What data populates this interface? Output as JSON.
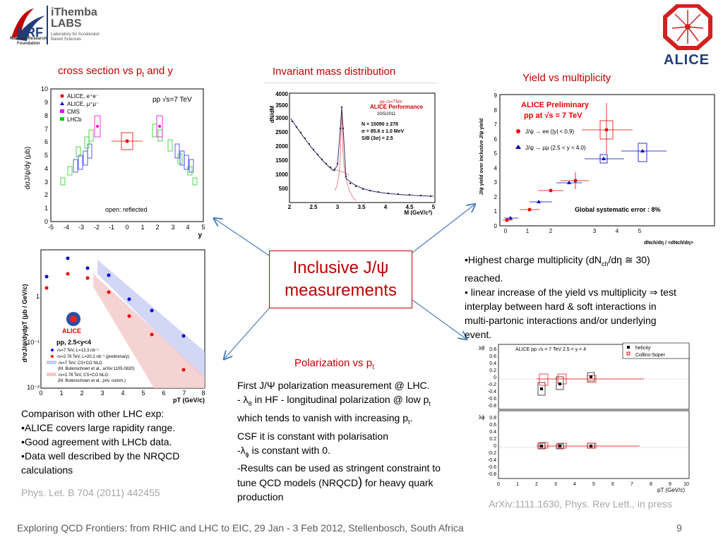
{
  "logos": {
    "nrf": {
      "big": "NRF",
      "line1": "National Research",
      "line2": "Foundation"
    },
    "ithemba": {
      "name1": "iThemba",
      "name2": "LABS",
      "line1": "Laboratory for Accelerator",
      "line2": "Based Sciences"
    },
    "alice": {
      "name": "ALICE"
    }
  },
  "center": {
    "line1": "Inclusive J/ψ",
    "line2": "measurements"
  },
  "sections": {
    "cross_section": {
      "title_main": "cross section vs p",
      "title_sub": "t",
      "title_tail": " and y"
    },
    "invariant_mass": {
      "title": "Invariant mass distribution"
    },
    "yield": {
      "title": "Yield vs multiplicity"
    },
    "polarization": {
      "title_main": "Polarization vs p",
      "title_sub": "t"
    }
  },
  "texts": {
    "comparison": {
      "l1": "Comparison with other LHC exp:",
      "l2": "•ALICE covers large rapidity range.",
      "l3": "•Good agreement  with LHCb data.",
      "l4": "•Data well described by the NRQCD",
      "l5": "calculations"
    },
    "ref_left": "Phys. Let. B 704 (2011) 442455",
    "multiplicity": {
      "l1a": "•Highest charge multiplicity (dN",
      "l1sub": "ch",
      "l1b": "/dη ≅ 30)",
      "l2": "reached.",
      "l3": "•  linear increase of the yield vs multiplicity ⇒ test",
      "l4": "interplay between hard & soft interactions in",
      "l5": "multi-partonic interactions and/or underlying",
      "l6": "event."
    },
    "polarization": {
      "l1": "First J/Ψ polarization measurement @ LHC.",
      "l2a": "- λ",
      "l2sub": "θ",
      "l2b": " in HF - longitudinal polarization @ low p",
      "l2sub2": "t",
      "l3a": "which tends to vanish with increasing p",
      "l3sub": "t",
      "l3b": ".",
      "l4": "CSF it is constant with polarisation",
      "l5a": "-λ",
      "l5sub": "ϕ",
      "l5b": " is constant  with 0.",
      "l6": "-Results can be used as stringent constraint to",
      "l7a": "tune QCD models (NRQCD",
      "l7b": ")",
      "l7c": " for heavy quark",
      "l8": "production"
    },
    "ref_right": "ArXiv:1111.1630, Phys. Rev Lett., in press"
  },
  "footer": {
    "text": "Exploring QCD Frontiers: from RHIC and LHC to EIC, 29 Jan - 3 Feb 2012, Stellenbosch, South Africa",
    "page": "9"
  },
  "plots": {
    "rapidity": {
      "ylabel": "dσJ/ψ/dy (μb)",
      "xlabel": "y",
      "energy": "pp √s=7 TeV",
      "legend": [
        "ALICE, e⁺e⁻",
        "ALICE, μ⁺μ⁻",
        "CMS",
        "LHCb"
      ],
      "note": "open: reflected",
      "yticks": [
        "0",
        "1",
        "2",
        "3",
        "4",
        "5",
        "6",
        "7",
        "8",
        "9",
        "10"
      ],
      "xticks": [
        "-5",
        "-4",
        "-3",
        "-2",
        "-1",
        "0",
        "1",
        "2",
        "3",
        "4",
        "5"
      ]
    },
    "mass": {
      "ylabel": "dN/dM",
      "xlabel": "M (GeV/c²)",
      "energy": "pp √s=7TeV",
      "label": "ALICE Performance",
      "date": "20/5/2011",
      "n": "N = 15090 ± 278",
      "sigma": "σ = 85.6 ± 1.0 MeV",
      "sb": "S/B (3σ) = 2.5",
      "yticks": [
        "500",
        "1000",
        "1500",
        "2000",
        "2500",
        "3000",
        "3500",
        "4000"
      ],
      "xticks": [
        "2",
        "2.5",
        "3",
        "3.5",
        "4",
        "4.5",
        "5"
      ]
    },
    "pt": {
      "ylabel": "d²σJ/ψ/dydpT (μb / GeV/c)",
      "xlabel": "pT (GeV/c)",
      "label": "ALICE",
      "energy": "pp, 2.5<y<4",
      "legend": [
        "√s=7 TeV, L=13.3 nb⁻¹",
        "√s=2.76 TeV, L=20.2 nb⁻¹ (preliminary)",
        "√s=7 TeV, CS+CO NLO",
        "(M. Butenschoen et al., arXiv:1105.0820)",
        "√s=2.76 TeV, CS+CO NLO",
        "(M. Butenschoen et al., priv. comm.)"
      ],
      "yticks": [
        "10⁻²",
        "10⁻¹",
        "1"
      ],
      "xticks": [
        "0",
        "1",
        "2",
        "3",
        "4",
        "5",
        "6",
        "7",
        "8"
      ]
    },
    "yield": {
      "title1": "ALICE Preliminary",
      "title2": "pp at √s = 7 TeV",
      "legend": [
        "J/ψ → ee (|y| < 0.9)",
        "J/ψ → μμ (2.5 < y < 4.0)"
      ],
      "syst": "Global systematic error : 8%",
      "ylabel": "J/ψ yield over inclusive J/ψ yield",
      "xlabel": "dNch/dη / <dNch/dη>",
      "yticks": [
        "0",
        "1",
        "2",
        "3",
        "4",
        "5",
        "6",
        "7",
        "8",
        "9"
      ],
      "xticks": [
        "0",
        "1",
        "2",
        "3",
        "4",
        "5"
      ]
    },
    "polar": {
      "header": "ALICE  pp  √s = 7 TeV    2.5 < y < 4",
      "legend": [
        "helicity",
        "Collins-Soper"
      ],
      "ylabel_top": "λθ",
      "ylabel_bottom": "λϕ",
      "xlabel": "pT (GeV/c)",
      "yticks_top": [
        "0.8",
        "0.6",
        "0.4",
        "0.2",
        "0",
        "-0.2",
        "-0.4",
        "-0.6",
        "-0.8"
      ],
      "yticks_bottom": [
        "0.8",
        "0.6",
        "0.4",
        "0.2",
        "0",
        "-0.2",
        "-0.4",
        "-0.6",
        "-0.8"
      ],
      "xticks": [
        "0",
        "1",
        "2",
        "3",
        "4",
        "5",
        "6",
        "7",
        "8",
        "9",
        "10"
      ]
    }
  },
  "colors": {
    "accent": "#c00000",
    "arrow": "#4f81bd",
    "footer": "#595959",
    "ref": "#a6a6a6"
  }
}
